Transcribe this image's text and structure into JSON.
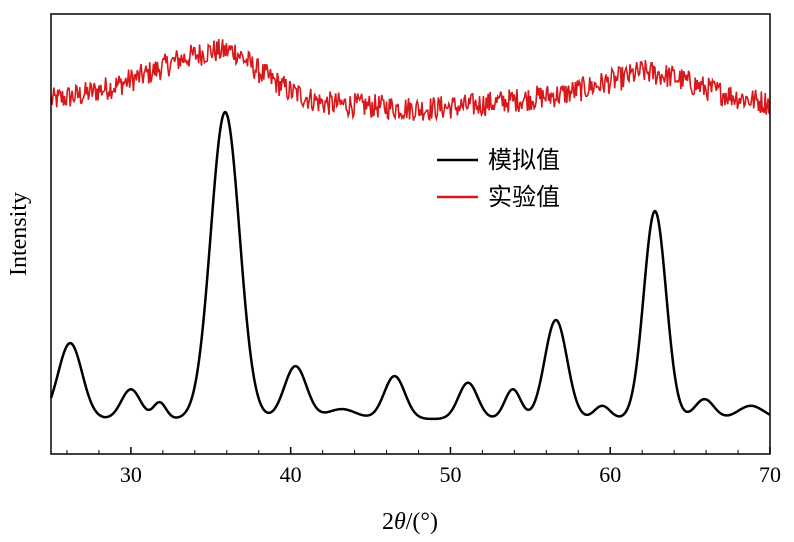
{
  "chart_data": {
    "type": "line",
    "xlabel_prefix": "2",
    "xlabel_symbol": "θ",
    "xlabel_suffix": "/(°)",
    "ylabel": "Intensity",
    "xlim": [
      25,
      70
    ],
    "xticks": [
      30,
      40,
      50,
      60,
      70
    ],
    "ylim": [
      0,
      1
    ],
    "legend_position": "center-right",
    "series": [
      {
        "name": "模拟值",
        "color": "#000000",
        "peaks": [
          {
            "x": 26.2,
            "h": 0.23,
            "w": 0.75
          },
          {
            "x": 30.0,
            "h": 0.09,
            "w": 0.6
          },
          {
            "x": 31.8,
            "h": 0.05,
            "w": 0.4
          },
          {
            "x": 35.9,
            "h": 0.93,
            "w": 0.9
          },
          {
            "x": 40.3,
            "h": 0.16,
            "w": 0.7
          },
          {
            "x": 43.2,
            "h": 0.03,
            "w": 0.9
          },
          {
            "x": 46.5,
            "h": 0.13,
            "w": 0.65
          },
          {
            "x": 51.1,
            "h": 0.11,
            "w": 0.6
          },
          {
            "x": 53.9,
            "h": 0.09,
            "w": 0.5
          },
          {
            "x": 56.6,
            "h": 0.3,
            "w": 0.7
          },
          {
            "x": 59.5,
            "h": 0.04,
            "w": 0.5
          },
          {
            "x": 62.8,
            "h": 0.63,
            "w": 0.7
          },
          {
            "x": 65.9,
            "h": 0.06,
            "w": 0.6
          },
          {
            "x": 68.8,
            "h": 0.04,
            "w": 0.8
          }
        ]
      },
      {
        "name": "实验值",
        "color": "#d7191c",
        "envelope": [
          {
            "x": 25,
            "y": 0.93
          },
          {
            "x": 27,
            "y": 0.95
          },
          {
            "x": 29,
            "y": 0.98
          },
          {
            "x": 31,
            "y": 1.02
          },
          {
            "x": 33,
            "y": 1.07
          },
          {
            "x": 35,
            "y": 1.1
          },
          {
            "x": 36.5,
            "y": 1.1
          },
          {
            "x": 38,
            "y": 1.03
          },
          {
            "x": 40,
            "y": 0.96
          },
          {
            "x": 42,
            "y": 0.92
          },
          {
            "x": 45,
            "y": 0.91
          },
          {
            "x": 48,
            "y": 0.9
          },
          {
            "x": 51,
            "y": 0.91
          },
          {
            "x": 54,
            "y": 0.93
          },
          {
            "x": 57,
            "y": 0.95
          },
          {
            "x": 59,
            "y": 0.98
          },
          {
            "x": 61,
            "y": 1.01
          },
          {
            "x": 62,
            "y": 1.03
          },
          {
            "x": 64,
            "y": 1.01
          },
          {
            "x": 66,
            "y": 0.97
          },
          {
            "x": 68,
            "y": 0.94
          },
          {
            "x": 70,
            "y": 0.92
          }
        ]
      }
    ]
  }
}
